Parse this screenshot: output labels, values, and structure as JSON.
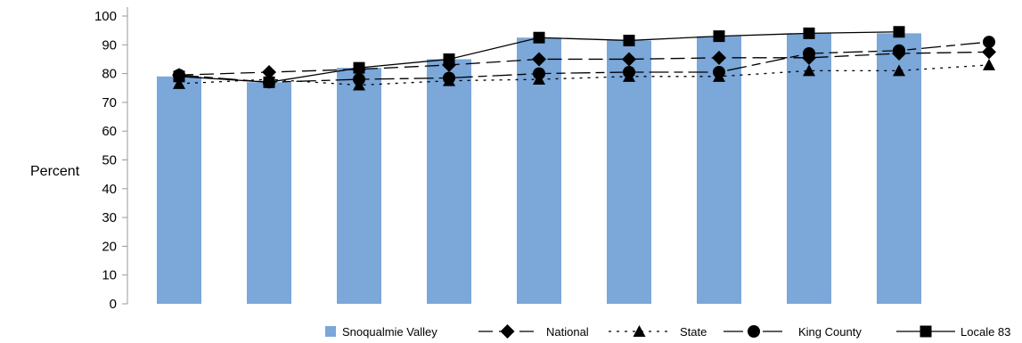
{
  "chart_data": {
    "type": "bar",
    "xlabel": "",
    "ylabel": "Percent",
    "ylim": [
      0,
      100
    ],
    "yticks": [
      0,
      10,
      20,
      30,
      40,
      50,
      60,
      70,
      80,
      90,
      100
    ],
    "grid": false,
    "legend_position": "bottom",
    "bar_series": {
      "name": "Snoqualmie Valley",
      "color": "#7ba7d9",
      "values": [
        79,
        77,
        82,
        85,
        92.5,
        91.5,
        93,
        94,
        94
      ]
    },
    "line_series": [
      {
        "name": "National",
        "marker": "diamond",
        "dash": "long-dash",
        "values": [
          79.5,
          80.5,
          81.5,
          83,
          85,
          85,
          85.5,
          85.5,
          87,
          87.5
        ]
      },
      {
        "name": "State",
        "marker": "triangle",
        "dash": "dot",
        "values": [
          76.5,
          78,
          76,
          77.5,
          78,
          79,
          79,
          81,
          81,
          83
        ]
      },
      {
        "name": "King County",
        "marker": "circle",
        "dash": "mixed",
        "values": [
          79.5,
          77,
          78,
          78.5,
          80,
          80.5,
          80.5,
          87,
          88,
          91
        ]
      },
      {
        "name": "Locale 83",
        "marker": "square",
        "dash": "solid",
        "values": [
          79,
          77,
          82,
          85,
          92.5,
          91.5,
          93,
          94,
          94.5
        ]
      }
    ]
  }
}
